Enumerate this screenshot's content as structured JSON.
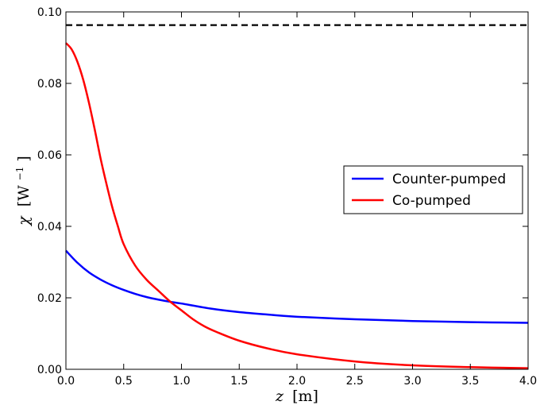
{
  "chart_data": {
    "type": "line",
    "xlabel": {
      "var": "z",
      "unit": "[m]"
    },
    "ylabel": {
      "var": "χ",
      "unit_open": "[W",
      "unit_sup": "−1",
      "unit_close": "]"
    },
    "xlim": [
      0,
      4
    ],
    "ylim": [
      0,
      0.1
    ],
    "xticks": [
      0.0,
      0.5,
      1.0,
      1.5,
      2.0,
      2.5,
      3.0,
      3.5,
      4.0
    ],
    "xtick_labels": [
      "0.0",
      "0.5",
      "1.0",
      "1.5",
      "2.0",
      "2.5",
      "3.0",
      "3.5",
      "4.0"
    ],
    "yticks": [
      0.0,
      0.02,
      0.04,
      0.06,
      0.08,
      0.1
    ],
    "ytick_labels": [
      "0.00",
      "0.02",
      "0.04",
      "0.06",
      "0.08",
      "0.10"
    ],
    "grid": false,
    "legend": {
      "placement": "center-right"
    },
    "reference_line": {
      "y": 0.0963,
      "style": "dashed",
      "color": "#000000"
    },
    "series": [
      {
        "name": "Counter-pumped",
        "color": "#0000ff",
        "x": [
          0.0,
          0.1,
          0.2,
          0.3,
          0.4,
          0.5,
          0.6,
          0.7,
          0.8,
          0.9,
          1.0,
          1.25,
          1.5,
          1.75,
          2.0,
          2.5,
          3.0,
          3.5,
          4.0
        ],
        "y": [
          0.0332,
          0.0298,
          0.0271,
          0.0251,
          0.0235,
          0.0222,
          0.0211,
          0.0202,
          0.0195,
          0.0189,
          0.0184,
          0.017,
          0.016,
          0.0153,
          0.0147,
          0.014,
          0.0135,
          0.0132,
          0.013
        ]
      },
      {
        "name": "Co-pumped",
        "color": "#ff0000",
        "x": [
          0.0,
          0.05,
          0.1,
          0.15,
          0.2,
          0.25,
          0.3,
          0.35,
          0.4,
          0.45,
          0.5,
          0.6,
          0.7,
          0.8,
          0.9,
          1.0,
          1.1,
          1.2,
          1.3,
          1.5,
          1.75,
          2.0,
          2.5,
          3.0,
          3.5,
          4.0
        ],
        "y": [
          0.0913,
          0.0895,
          0.086,
          0.081,
          0.0745,
          0.067,
          0.059,
          0.052,
          0.0455,
          0.04,
          0.035,
          0.029,
          0.025,
          0.022,
          0.019,
          0.0165,
          0.014,
          0.012,
          0.0105,
          0.008,
          0.0058,
          0.0042,
          0.0022,
          0.0011,
          0.0006,
          0.0003
        ]
      }
    ]
  }
}
